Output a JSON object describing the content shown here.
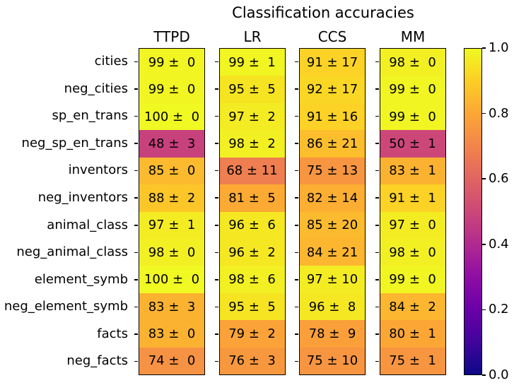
{
  "chart_data": {
    "type": "heatmap",
    "title": "Classification accuracies",
    "columns": [
      "TTPD",
      "LR",
      "CCS",
      "MM"
    ],
    "rows": [
      "cities",
      "neg_cities",
      "sp_en_trans",
      "neg_sp_en_trans",
      "inventors",
      "neg_inventors",
      "animal_class",
      "neg_animal_class",
      "element_symb",
      "neg_element_symb",
      "facts",
      "neg_facts"
    ],
    "series": [
      {
        "name": "TTPD",
        "values": [
          [
            99,
            0
          ],
          [
            99,
            0
          ],
          [
            100,
            0
          ],
          [
            48,
            3
          ],
          [
            85,
            0
          ],
          [
            88,
            2
          ],
          [
            97,
            1
          ],
          [
            98,
            0
          ],
          [
            100,
            0
          ],
          [
            83,
            3
          ],
          [
            83,
            0
          ],
          [
            74,
            0
          ]
        ]
      },
      {
        "name": "LR",
        "values": [
          [
            99,
            1
          ],
          [
            95,
            5
          ],
          [
            97,
            2
          ],
          [
            98,
            2
          ],
          [
            68,
            11
          ],
          [
            81,
            5
          ],
          [
            96,
            6
          ],
          [
            96,
            2
          ],
          [
            98,
            6
          ],
          [
            95,
            5
          ],
          [
            79,
            2
          ],
          [
            76,
            3
          ]
        ]
      },
      {
        "name": "CCS",
        "values": [
          [
            91,
            17
          ],
          [
            92,
            17
          ],
          [
            91,
            16
          ],
          [
            86,
            21
          ],
          [
            75,
            13
          ],
          [
            82,
            14
          ],
          [
            85,
            20
          ],
          [
            84,
            21
          ],
          [
            97,
            10
          ],
          [
            96,
            8
          ],
          [
            78,
            9
          ],
          [
            75,
            10
          ]
        ]
      },
      {
        "name": "MM",
        "values": [
          [
            98,
            0
          ],
          [
            99,
            0
          ],
          [
            99,
            0
          ],
          [
            50,
            1
          ],
          [
            83,
            1
          ],
          [
            91,
            1
          ],
          [
            97,
            0
          ],
          [
            98,
            0
          ],
          [
            99,
            0
          ],
          [
            84,
            2
          ],
          [
            80,
            1
          ],
          [
            75,
            1
          ]
        ]
      }
    ],
    "cell_format": "{v} ± {e}",
    "value_scale": 100,
    "colorbar": {
      "min": 0.0,
      "max": 1.0,
      "tick_labels": [
        "1.0",
        "0.8",
        "0.6",
        "0.4",
        "0.2",
        "0.0"
      ],
      "tick_values": [
        1.0,
        0.8,
        0.6,
        0.4,
        0.2,
        0.0
      ],
      "colormap": "plasma",
      "colormap_anchors": [
        "#0d0887",
        "#41049d",
        "#6a00a8",
        "#8f0da4",
        "#b12a90",
        "#cc4778",
        "#e16462",
        "#f2844b",
        "#fca636",
        "#fcce25",
        "#f0f921"
      ]
    },
    "text_color": "#000000",
    "background": "#ffffff"
  }
}
